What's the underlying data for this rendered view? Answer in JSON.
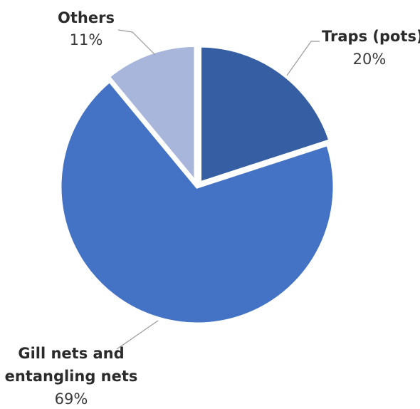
{
  "chart_data": {
    "type": "pie",
    "title": "",
    "slices": [
      {
        "label": "Traps (pots)",
        "value": 20,
        "display": "20%",
        "color": "#365fa3"
      },
      {
        "label": "Gill nets and entangling nets",
        "label_lines": [
          "Gill nets and",
          "entangling nets"
        ],
        "value": 69,
        "display": "69%",
        "color": "#4472c4"
      },
      {
        "label": "Others",
        "value": 11,
        "display": "11%",
        "color": "#a8b6dc"
      }
    ],
    "start_angle_deg": 0,
    "direction": "clockwise",
    "exploded": true
  }
}
